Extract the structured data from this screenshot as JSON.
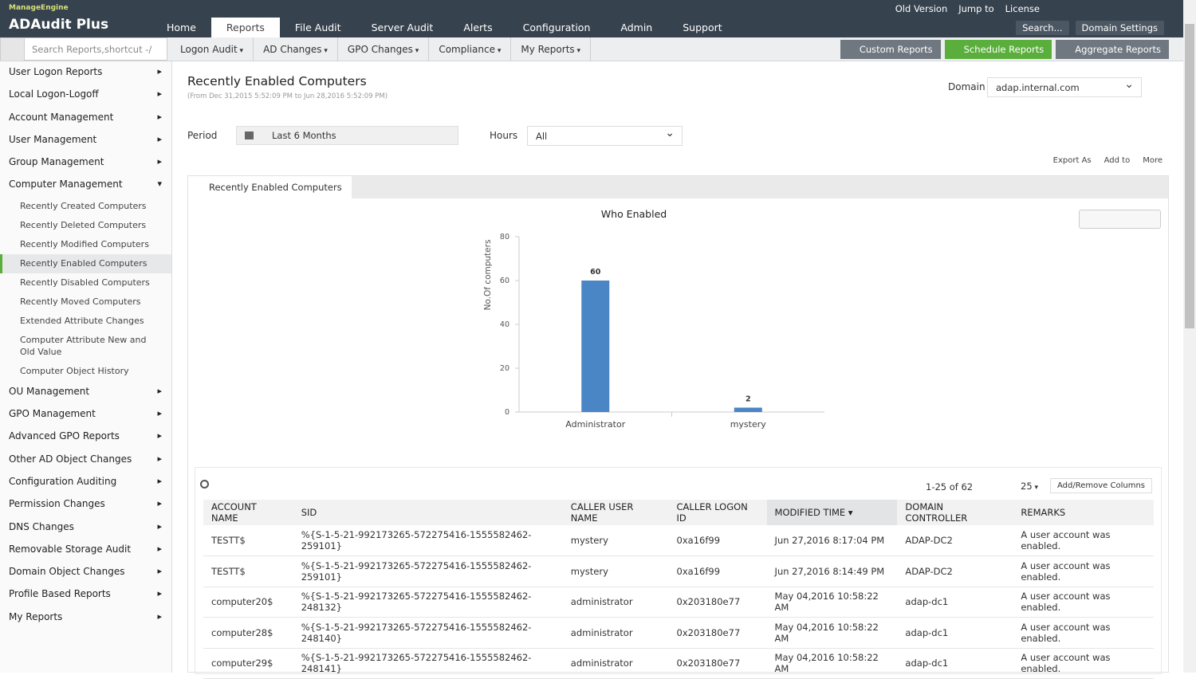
{
  "brand": {
    "company": "ManageEngine",
    "product": "ADAudit Plus"
  },
  "top_links": [
    "Old Version",
    "Jump to",
    "License"
  ],
  "top_buttons": [
    "Search...",
    "Domain Settings"
  ],
  "tabs": [
    "Home",
    "Reports",
    "File Audit",
    "Server Audit",
    "Alerts",
    "Configuration",
    "Admin",
    "Support"
  ],
  "search_placeholder": "Search Reports,shortcut -/",
  "subnav": [
    "Logon Audit",
    "AD Changes",
    "GPO Changes",
    "Compliance",
    "My Reports"
  ],
  "report_buttons": [
    "Custom Reports",
    "Schedule Reports",
    "Aggregate Reports"
  ],
  "sidebar": {
    "groups_before": [
      "User Logon Reports",
      "Local Logon-Logoff",
      "Account Management",
      "User Management",
      "Group Management",
      "Computer Management"
    ],
    "items": [
      "Recently Created Computers",
      "Recently Deleted Computers",
      "Recently Modified Computers",
      "Recently Enabled Computers",
      "Recently Disabled Computers",
      "Recently Moved Computers",
      "Extended Attribute Changes",
      "Computer Attribute New and Old Value",
      "Computer Object History"
    ],
    "groups_after": [
      "OU Management",
      "GPO Management",
      "Advanced GPO Reports",
      "Other AD Object Changes",
      "Configuration Auditing",
      "Permission Changes",
      "DNS Changes",
      "Removable Storage Audit",
      "Domain Object Changes",
      "Profile Based Reports",
      "My Reports"
    ]
  },
  "report": {
    "title": "Recently Enabled Computers",
    "range": "(From Dec 31,2015 5:52:09 PM to Jun 28,2016 5:52:09 PM)",
    "domain_label": "Domain",
    "domain": "adap.internal.com",
    "period_label": "Period",
    "period": "Last 6 Months",
    "hours_label": "Hours",
    "hours": "All",
    "actions": [
      "Export As",
      "Add to",
      "More"
    ],
    "tab": "Recently Enabled Computers"
  },
  "chart_data": {
    "type": "bar",
    "title": "Who Enabled",
    "y_label": "No.Of computers",
    "categories": [
      "Administrator",
      "mystery"
    ],
    "values": [
      60,
      2
    ],
    "color": "#4a86c5",
    "ylim": [
      0,
      80
    ],
    "yticks": [
      0,
      20,
      40,
      60,
      80
    ]
  },
  "table": {
    "pager": "1-25 of 62",
    "page_size": "25",
    "add_remove": "Add/Remove Columns",
    "columns": [
      "ACCOUNT NAME",
      "SID",
      "CALLER USER NAME",
      "CALLER LOGON ID",
      "MODIFIED TIME",
      "DOMAIN CONTROLLER",
      "REMARKS"
    ],
    "rows": [
      [
        "TESTT$",
        "%{S-1-5-21-992173265-572275416-1555582462-259101}",
        "mystery",
        "0xa16f99",
        "Jun 27,2016 8:17:04 PM",
        "ADAP-DC2",
        "A user account was enabled."
      ],
      [
        "TESTT$",
        "%{S-1-5-21-992173265-572275416-1555582462-259101}",
        "mystery",
        "0xa16f99",
        "Jun 27,2016 8:14:49 PM",
        "ADAP-DC2",
        "A user account was enabled."
      ],
      [
        "computer20$",
        "%{S-1-5-21-992173265-572275416-1555582462-248132}",
        "administrator",
        "0x203180e77",
        "May 04,2016 10:58:22 AM",
        "adap-dc1",
        "A user account was enabled."
      ],
      [
        "computer28$",
        "%{S-1-5-21-992173265-572275416-1555582462-248140}",
        "administrator",
        "0x203180e77",
        "May 04,2016 10:58:22 AM",
        "adap-dc1",
        "A user account was enabled."
      ],
      [
        "computer29$",
        "%{S-1-5-21-992173265-572275416-1555582462-248141}",
        "administrator",
        "0x203180e77",
        "May 04,2016 10:58:22 AM",
        "adap-dc1",
        "A user account was enabled."
      ]
    ]
  }
}
